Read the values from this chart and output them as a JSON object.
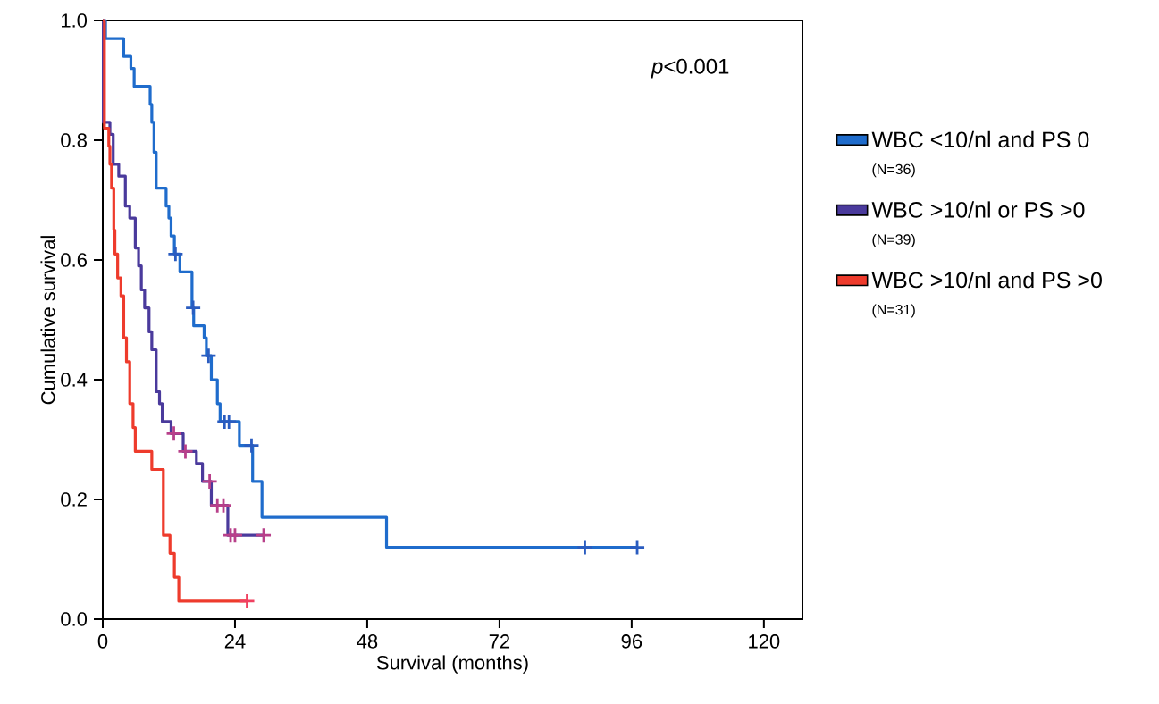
{
  "chart_data": {
    "type": "step",
    "xlabel": "Survival (months)",
    "ylabel": "Cumulative survival",
    "xlim": [
      0,
      127
    ],
    "ylim": [
      0,
      1
    ],
    "xticks": [
      0,
      24,
      48,
      72,
      96,
      120
    ],
    "yticks": [
      {
        "value": 0,
        "label": "0.0"
      },
      {
        "value": 0.2,
        "label": "0.2"
      },
      {
        "value": 0.4,
        "label": "0.4"
      },
      {
        "value": 0.6,
        "label": "0.6"
      },
      {
        "value": 0.8,
        "label": "0.8"
      },
      {
        "value": 1,
        "label": "1.0"
      }
    ],
    "legend": "right",
    "grid": false,
    "annotations": [
      "*p*<0.001",
      "(N=36)",
      "(N=39)",
      "(N=31)"
    ],
    "series": [
      {
        "name": "WBC <10/nl and PS 0",
        "color": "#1f6ccc",
        "x": [
          0,
          0.5,
          3.8,
          5.1,
          5.7,
          8.6,
          8.9,
          9.3,
          9.7,
          11.5,
          12.0,
          12.4,
          13.0,
          14.0,
          16.2,
          16.5,
          18.4,
          18.8,
          19.7,
          20.8,
          21.3,
          24.8,
          27.2,
          28.9,
          51.5,
          97
        ],
        "values": [
          1,
          0.97,
          0.94,
          0.92,
          0.89,
          0.86,
          0.83,
          0.78,
          0.72,
          0.69,
          0.67,
          0.64,
          0.61,
          0.58,
          0.52,
          0.49,
          0.47,
          0.44,
          0.4,
          0.36,
          0.33,
          0.29,
          0.23,
          0.17,
          0.12,
          0.12
        ]
      },
      {
        "name": "WBC >10/nl or PS >0",
        "color": "#4a3a9c",
        "x": [
          0,
          0.1,
          1.3,
          1.9,
          2.9,
          4.1,
          4.9,
          5.9,
          6.5,
          7.0,
          7.6,
          8.4,
          8.9,
          9.7,
          10.3,
          10.8,
          12.4,
          14.6,
          17.0,
          18.1,
          19.7,
          22.7,
          29.2
        ],
        "values": [
          1,
          0.83,
          0.81,
          0.76,
          0.74,
          0.69,
          0.67,
          0.62,
          0.59,
          0.55,
          0.52,
          0.48,
          0.45,
          0.38,
          0.36,
          0.33,
          0.31,
          0.28,
          0.26,
          0.23,
          0.19,
          0.14,
          0.14
        ]
      },
      {
        "name": "WBC >10/nl and PS >0",
        "color": "#ee3b2c",
        "x": [
          0,
          0.3,
          1.1,
          1.3,
          1.6,
          2.0,
          2.2,
          2.7,
          3.3,
          3.8,
          4.3,
          4.9,
          5.5,
          5.9,
          8.9,
          11.0,
          12.2,
          13.0,
          13.8,
          26.2
        ],
        "values": [
          1,
          0.82,
          0.79,
          0.76,
          0.72,
          0.65,
          0.61,
          0.57,
          0.54,
          0.47,
          0.43,
          0.36,
          0.32,
          0.28,
          0.25,
          0.14,
          0.11,
          0.07,
          0.03,
          0.03
        ]
      },
      {
        "type": "scatter",
        "marker": "cross",
        "color": "#2a5cc0",
        "x": [
          13.2,
          16.4,
          19.2,
          22.1,
          22.9,
          27.0,
          87.5,
          97
        ],
        "values": [
          0.61,
          0.52,
          0.44,
          0.33,
          0.33,
          0.29,
          0.12,
          0.12
        ]
      },
      {
        "type": "scatter",
        "marker": "cross",
        "color": "#b8408a",
        "x": [
          12.9,
          15.0,
          19.4,
          20.8,
          21.9,
          23.2,
          24.0,
          29.2
        ],
        "values": [
          0.31,
          0.28,
          0.23,
          0.19,
          0.19,
          0.14,
          0.14,
          0.14
        ]
      },
      {
        "type": "scatter",
        "marker": "cross",
        "color": "#f04060",
        "x": [
          26.2
        ],
        "values": [
          0.03
        ]
      }
    ]
  }
}
